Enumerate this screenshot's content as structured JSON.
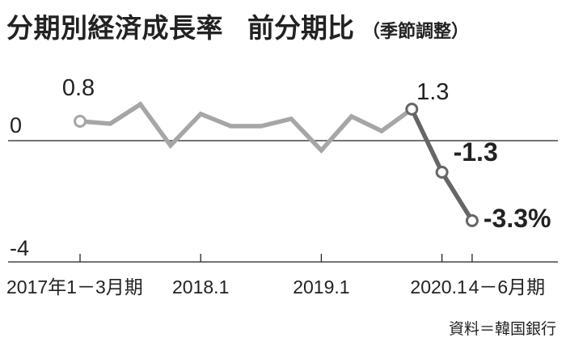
{
  "header": {
    "title": "分期別経済成長率",
    "subtitle": "前分期比",
    "note": "（季節調整）"
  },
  "source": "資料＝韓国銀行",
  "colors": {
    "line_main": "#a6a6a6",
    "line_highlight": "#666666",
    "axis": "#222222",
    "marker_fill": "#ffffff"
  },
  "chart_data": {
    "type": "line",
    "title": "分期別経済成長率　前分期比（季節調整）",
    "x": [
      "2017Q1",
      "2017Q2",
      "2017Q3",
      "2017Q4",
      "2018Q1",
      "2018Q2",
      "2018Q3",
      "2018Q4",
      "2019Q1",
      "2019Q2",
      "2019Q3",
      "2019Q4",
      "2020Q1",
      "2020Q2"
    ],
    "values": [
      0.8,
      0.7,
      1.5,
      -0.2,
      1.1,
      0.6,
      0.6,
      0.9,
      -0.4,
      1.0,
      0.4,
      1.3,
      -1.3,
      -3.3
    ],
    "ylim": [
      -4,
      2
    ],
    "yticks": [
      {
        "value": 0,
        "label": "0"
      },
      {
        "value": -4,
        "label": "-4"
      }
    ],
    "xticks": [
      {
        "index": 0,
        "label": "2017年1－3月期"
      },
      {
        "index": 4,
        "label": "2018.1"
      },
      {
        "index": 8,
        "label": "2019.1"
      },
      {
        "index": 12,
        "label": "2020.1"
      },
      {
        "index": 13,
        "label": "4－6月期"
      }
    ],
    "data_labels": [
      {
        "index": 0,
        "text": "0.8",
        "bold": false
      },
      {
        "index": 11,
        "text": "1.3",
        "bold": false
      },
      {
        "index": 12,
        "text": "-1.3",
        "bold": true
      },
      {
        "index": 13,
        "text": "-3.3%",
        "bold": true
      }
    ],
    "markers": [
      0,
      11,
      12,
      13
    ],
    "highlight_from_index": 11,
    "grid": false,
    "legend": "none"
  }
}
